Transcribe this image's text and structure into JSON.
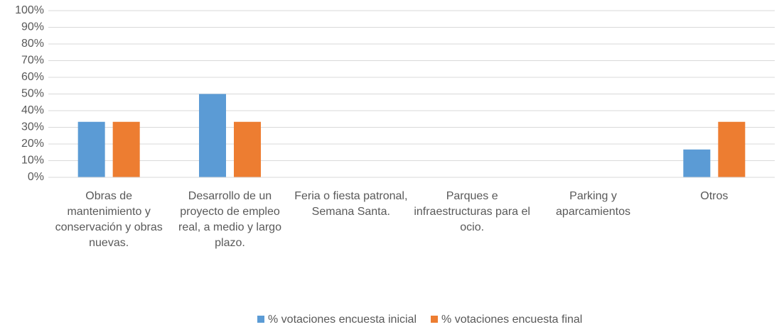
{
  "chart_data": {
    "type": "bar",
    "categories": [
      "Obras de mantenimiento y conservación y obras nuevas.",
      "Desarrollo de un proyecto de empleo real, a medio y largo plazo.",
      "Feria o fiesta patronal, Semana Santa.",
      "Parques e infraestructuras para el ocio.",
      "Parking y aparcamientos",
      "Otros"
    ],
    "series": [
      {
        "name": "% votaciones encuesta inicial",
        "color": "#5b9bd5",
        "values": [
          33.3,
          50,
          0,
          0,
          0,
          16.7
        ]
      },
      {
        "name": "% votaciones encuesta final",
        "color": "#ed7d31",
        "values": [
          33.3,
          33.3,
          0,
          0,
          0,
          33.3
        ]
      }
    ],
    "ylim": [
      0,
      100
    ],
    "yticks": [
      {
        "value": 0,
        "label": "0%"
      },
      {
        "value": 10,
        "label": "10%"
      },
      {
        "value": 20,
        "label": "20%"
      },
      {
        "value": 30,
        "label": "30%"
      },
      {
        "value": 40,
        "label": "40%"
      },
      {
        "value": 50,
        "label": "50%"
      },
      {
        "value": 60,
        "label": "60%"
      },
      {
        "value": 70,
        "label": "70%"
      },
      {
        "value": 80,
        "label": "80%"
      },
      {
        "value": 90,
        "label": "90%"
      },
      {
        "value": 100,
        "label": "100%"
      }
    ],
    "grid": true,
    "legend": "bottom"
  }
}
